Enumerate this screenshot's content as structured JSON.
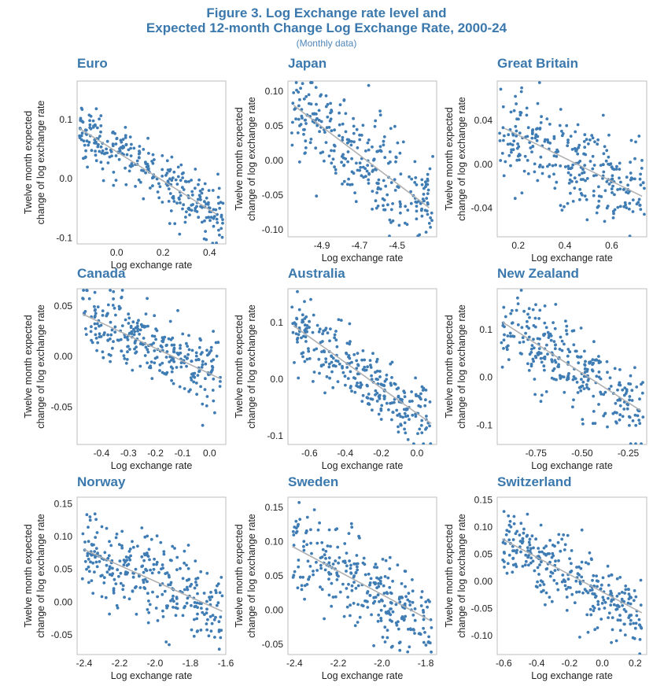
{
  "figure": {
    "title_line1": "Figure 3. Log Exchange rate level and",
    "title_line2": "Expected 12-month Change Log Exchange Rate, 2000-24",
    "subtitle": "(Monthly data)"
  },
  "colors": {
    "points": "#3f7cb4",
    "fit_line": "#b0b0b0",
    "title": "#3a78ad"
  },
  "chart_data": [
    {
      "type": "scatter",
      "title": "Euro",
      "xlabel": "Log exchange rate",
      "ylabel": "Twelve month expected change of log exchange rate",
      "xlim": [
        -0.17,
        0.47
      ],
      "ylim": [
        -0.11,
        0.165
      ],
      "xticks": [
        0.0,
        0.2,
        0.4
      ],
      "xtick_labels": [
        "0.0",
        "0.2",
        "0.4"
      ],
      "yticks": [
        0.1,
        0.0,
        -0.1
      ],
      "ytick_labels": [
        "0.1",
        "0.0",
        "-0.1"
      ],
      "fit_line": {
        "x": [
          -0.16,
          0.43
        ],
        "y": [
          0.085,
          -0.06
        ]
      },
      "n_points": 300,
      "x_range": [
        -0.16,
        0.46
      ],
      "noise": 0.025
    },
    {
      "type": "scatter",
      "title": "Japan",
      "xlabel": "Log exchange rate",
      "ylabel": "Twelve month expected change of log exchange rate",
      "xlim": [
        -5.08,
        -4.29
      ],
      "ylim": [
        -0.11,
        0.115
      ],
      "xticks": [
        -4.9,
        -4.7,
        -4.5
      ],
      "xtick_labels": [
        "-4.9",
        "-4.7",
        "-4.5"
      ],
      "yticks": [
        0.1,
        0.05,
        0.0,
        -0.05,
        -0.1
      ],
      "ytick_labels": [
        "0.10",
        "0.05",
        "0.00",
        "-0.05",
        "-0.10"
      ],
      "fit_line": {
        "x": [
          -5.05,
          -4.33
        ],
        "y": [
          0.08,
          -0.068
        ]
      },
      "n_points": 300,
      "x_range": [
        -5.06,
        -4.31
      ],
      "noise": 0.035
    },
    {
      "type": "scatter",
      "title": "Great Britain",
      "xlabel": "Log exchange rate",
      "ylabel": "Twelve month expected change of log exchange rate",
      "xlim": [
        0.11,
        0.75
      ],
      "ylim": [
        -0.066,
        0.076
      ],
      "xticks": [
        0.2,
        0.4,
        0.6
      ],
      "xtick_labels": [
        "0.2",
        "0.4",
        "0.6"
      ],
      "yticks": [
        0.04,
        0.0,
        -0.04
      ],
      "ytick_labels": [
        "0.04",
        "0.00",
        "-0.04"
      ],
      "fit_line": {
        "x": [
          0.14,
          0.73
        ],
        "y": [
          0.033,
          -0.029
        ]
      },
      "n_points": 300,
      "x_range": [
        0.12,
        0.74
      ],
      "noise": 0.02
    },
    {
      "type": "scatter",
      "title": "Canada",
      "xlabel": "Log exchange rate",
      "ylabel": "Twelve month expected change of log exchange rate",
      "xlim": [
        -0.49,
        0.06
      ],
      "ylim": [
        -0.087,
        0.067
      ],
      "xticks": [
        -0.4,
        -0.3,
        -0.2,
        -0.1,
        0.0
      ],
      "xtick_labels": [
        "-0.4",
        "-0.3",
        "-0.2",
        "-0.1",
        "0.0"
      ],
      "yticks": [
        0.05,
        0.0,
        -0.05
      ],
      "ytick_labels": [
        "0.05",
        "0.00",
        "-0.05"
      ],
      "fit_line": {
        "x": [
          -0.47,
          0.04
        ],
        "y": [
          0.042,
          -0.022
        ]
      },
      "n_points": 300,
      "x_range": [
        -0.47,
        0.04
      ],
      "noise": 0.018
    },
    {
      "type": "scatter",
      "title": "Australia",
      "xlabel": "Log exchange rate",
      "ylabel": "Twelve month expected change of log exchange rate",
      "xlim": [
        -0.72,
        0.11
      ],
      "ylim": [
        -0.115,
        0.16
      ],
      "xticks": [
        -0.6,
        -0.4,
        -0.2,
        0.0
      ],
      "xtick_labels": [
        "-0.6",
        "-0.4",
        "-0.2",
        "0.0"
      ],
      "yticks": [
        0.1,
        0.0,
        -0.1
      ],
      "ytick_labels": [
        "0.1",
        "0.0",
        "-0.1"
      ],
      "fit_line": {
        "x": [
          -0.69,
          0.08
        ],
        "y": [
          0.095,
          -0.078
        ]
      },
      "n_points": 300,
      "x_range": [
        -0.7,
        0.08
      ],
      "noise": 0.03
    },
    {
      "type": "scatter",
      "title": "New Zealand",
      "xlabel": "Log exchange rate",
      "ylabel": "Twelve month expected change of log exchange rate",
      "xlim": [
        -0.96,
        -0.15
      ],
      "ylim": [
        -0.14,
        0.185
      ],
      "xticks": [
        -0.75,
        -0.5,
        -0.25
      ],
      "xtick_labels": [
        "-0.75",
        "-0.50",
        "-0.25"
      ],
      "yticks": [
        0.1,
        0.0,
        -0.1
      ],
      "ytick_labels": [
        "0.1",
        "0.0",
        "-0.1"
      ],
      "fit_line": {
        "x": [
          -0.93,
          -0.18
        ],
        "y": [
          0.115,
          -0.07
        ]
      },
      "n_points": 300,
      "x_range": [
        -0.94,
        -0.17
      ],
      "noise": 0.04
    },
    {
      "type": "scatter",
      "title": "Norway",
      "xlabel": "Log exchange rate",
      "ylabel": "Twelve month expected change of log exchange rate",
      "xlim": [
        -2.44,
        -1.6
      ],
      "ylim": [
        -0.08,
        0.16
      ],
      "xticks": [
        -2.4,
        -2.2,
        -2.0,
        -1.8,
        -1.6
      ],
      "xtick_labels": [
        "-2.4",
        "-2.2",
        "-2.0",
        "-1.8",
        "-1.6"
      ],
      "yticks": [
        0.15,
        0.1,
        0.05,
        0.0,
        -0.05
      ],
      "ytick_labels": [
        "0.15",
        "0.10",
        "0.05",
        "0.00",
        "-0.05"
      ],
      "fit_line": {
        "x": [
          -2.4,
          -1.62
        ],
        "y": [
          0.08,
          -0.014
        ]
      },
      "n_points": 300,
      "x_range": [
        -2.41,
        -1.62
      ],
      "noise": 0.032
    },
    {
      "type": "scatter",
      "title": "Sweden",
      "xlabel": "Log exchange rate",
      "ylabel": "Twelve month expected change of log exchange rate",
      "xlim": [
        -2.43,
        -1.75
      ],
      "ylim": [
        -0.065,
        0.165
      ],
      "xticks": [
        -2.4,
        -2.2,
        -2.0,
        -1.8
      ],
      "xtick_labels": [
        "-2.4",
        "-2.2",
        "-2.0",
        "-1.8"
      ],
      "yticks": [
        0.15,
        0.1,
        0.05,
        0.0,
        -0.05
      ],
      "ytick_labels": [
        "0.15",
        "0.10",
        "0.05",
        "0.00",
        "-0.05"
      ],
      "fit_line": {
        "x": [
          -2.41,
          -1.78
        ],
        "y": [
          0.093,
          -0.015
        ]
      },
      "n_points": 300,
      "x_range": [
        -2.41,
        -1.77
      ],
      "noise": 0.033
    },
    {
      "type": "scatter",
      "title": "Switzerland",
      "xlabel": "Log exchange rate",
      "ylabel": "Twelve month expected change of log exchange rate",
      "xlim": [
        -0.64,
        0.27
      ],
      "ylim": [
        -0.135,
        0.155
      ],
      "xticks": [
        -0.6,
        -0.4,
        -0.2,
        0.0,
        0.2
      ],
      "xtick_labels": [
        "-0.6",
        "-0.4",
        "-0.2",
        "0.0",
        "0.2"
      ],
      "yticks": [
        0.15,
        0.1,
        0.05,
        0.0,
        -0.05,
        -0.1
      ],
      "ytick_labels": [
        "0.15",
        "0.10",
        "0.05",
        "0.00",
        "-0.05",
        "-0.10"
      ],
      "fit_line": {
        "x": [
          -0.61,
          0.24
        ],
        "y": [
          0.078,
          -0.058
        ]
      },
      "n_points": 300,
      "x_range": [
        -0.61,
        0.24
      ],
      "noise": 0.03
    }
  ]
}
